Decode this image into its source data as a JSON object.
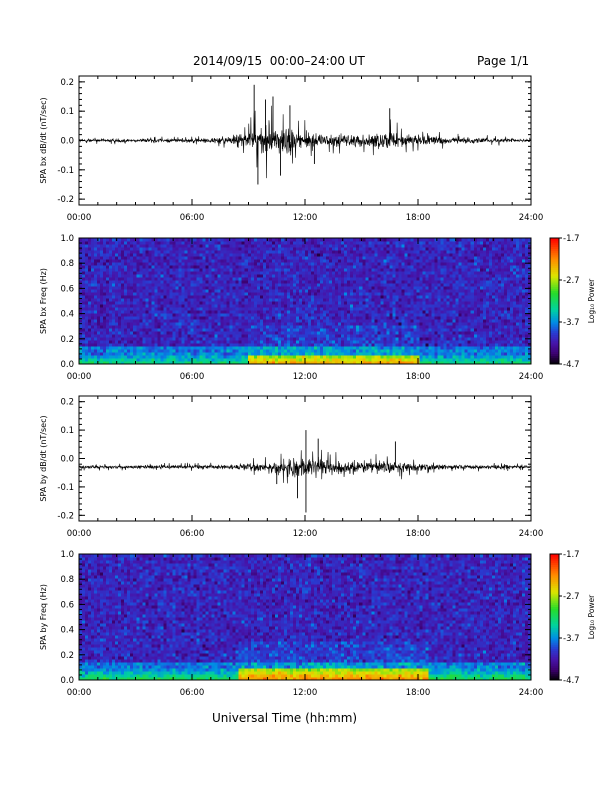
{
  "header": {
    "title": "2014/09/15  00:00–24:00 UT",
    "page": "Page 1/1"
  },
  "footer": {
    "x_label": "Universal Time (hh:mm)"
  },
  "colors": {
    "trace": "#000000",
    "colormap": [
      "#000000",
      "#2a0050",
      "#3a10a0",
      "#2040d0",
      "#00b0e0",
      "#00d080",
      "#40e000",
      "#e0e000",
      "#ff8000",
      "#ff0000"
    ]
  },
  "colorbar": {
    "label": "Log₁₀ Power",
    "ticks": [
      "-1.7",
      "-2.7",
      "-3.7",
      "-4.7"
    ]
  },
  "chart_data": [
    {
      "type": "line",
      "name": "bx-dbdt",
      "ylabel": "SPA bx dB/dt (nT/sec)",
      "xlim": [
        0,
        24
      ],
      "ylim": [
        -0.22,
        0.22
      ],
      "x_ticks": [
        "00:00",
        "06:00",
        "12:00",
        "18:00",
        "24:00"
      ],
      "y_ticks": [
        "0.2",
        "0.1",
        "0.0",
        "-0.1",
        "-0.2"
      ],
      "baseline": 0.0,
      "envelope": {
        "x": [
          0,
          3,
          6,
          8,
          9,
          9.5,
          10,
          11,
          12,
          13,
          14,
          15,
          16,
          16.5,
          17,
          18,
          20,
          22,
          24
        ],
        "amplitude": [
          0.012,
          0.014,
          0.016,
          0.03,
          0.07,
          0.12,
          0.13,
          0.11,
          0.07,
          0.05,
          0.045,
          0.05,
          0.06,
          0.08,
          0.06,
          0.04,
          0.025,
          0.018,
          0.015
        ]
      },
      "peaks": [
        {
          "x": 9.3,
          "y": 0.19
        },
        {
          "x": 9.5,
          "y": -0.15
        },
        {
          "x": 9.9,
          "y": 0.14
        },
        {
          "x": 10.3,
          "y": 0.15
        },
        {
          "x": 10.7,
          "y": -0.12
        },
        {
          "x": 11.2,
          "y": 0.12
        },
        {
          "x": 16.5,
          "y": 0.11
        },
        {
          "x": 12.5,
          "y": -0.08
        }
      ]
    },
    {
      "type": "heatmap",
      "name": "bx-freq",
      "ylabel": "SPA bx Freq (Hz)",
      "xlim": [
        0,
        24
      ],
      "ylim": [
        0,
        1.0
      ],
      "x_ticks": [
        "00:00",
        "06:00",
        "12:00",
        "18:00",
        "24:00"
      ],
      "y_ticks": [
        "1.0",
        "0.8",
        "0.6",
        "0.4",
        "0.2",
        "0.0"
      ],
      "clim": [
        -4.7,
        -1.7
      ],
      "background_level": -4.1,
      "low_freq_band": {
        "freq_max": 0.08,
        "level": -3.2
      },
      "enhanced_interval": {
        "x": [
          9,
          18
        ],
        "low_freq_level": -2.4
      }
    },
    {
      "type": "line",
      "name": "by-dbdt",
      "ylabel": "SPA by dB/dt (nT/sec)",
      "xlim": [
        0,
        24
      ],
      "ylim": [
        -0.22,
        0.22
      ],
      "x_ticks": [
        "00:00",
        "06:00",
        "12:00",
        "18:00",
        "24:00"
      ],
      "y_ticks": [
        "0.2",
        "0.1",
        "0.0",
        "-0.1",
        "-0.2"
      ],
      "baseline": -0.03,
      "envelope": {
        "x": [
          0,
          3,
          6,
          8,
          9,
          10,
          11,
          11.5,
          12,
          13,
          14,
          15,
          16,
          17,
          18,
          20,
          22,
          24
        ],
        "amplitude": [
          0.012,
          0.014,
          0.015,
          0.018,
          0.03,
          0.045,
          0.06,
          0.08,
          0.085,
          0.06,
          0.05,
          0.05,
          0.055,
          0.045,
          0.03,
          0.018,
          0.015,
          0.013
        ]
      },
      "peaks": [
        {
          "x": 12.05,
          "y": 0.1
        },
        {
          "x": 12.05,
          "y": -0.19
        },
        {
          "x": 11.6,
          "y": -0.14
        },
        {
          "x": 12.7,
          "y": 0.07
        },
        {
          "x": 16.8,
          "y": 0.06
        },
        {
          "x": 10.5,
          "y": -0.09
        }
      ]
    },
    {
      "type": "heatmap",
      "name": "by-freq",
      "ylabel": "SPA by Freq (Hz)",
      "xlim": [
        0,
        24
      ],
      "ylim": [
        0,
        1.0
      ],
      "x_ticks": [
        "00:00",
        "06:00",
        "12:00",
        "18:00",
        "24:00"
      ],
      "y_ticks": [
        "1.0",
        "0.8",
        "0.6",
        "0.4",
        "0.2",
        "0.0"
      ],
      "clim": [
        -4.7,
        -1.7
      ],
      "background_level": -4.1,
      "low_freq_band": {
        "freq_max": 0.09,
        "level": -3.1
      },
      "enhanced_interval": {
        "x": [
          8.5,
          18.5
        ],
        "low_freq_level": -2.3
      }
    }
  ]
}
